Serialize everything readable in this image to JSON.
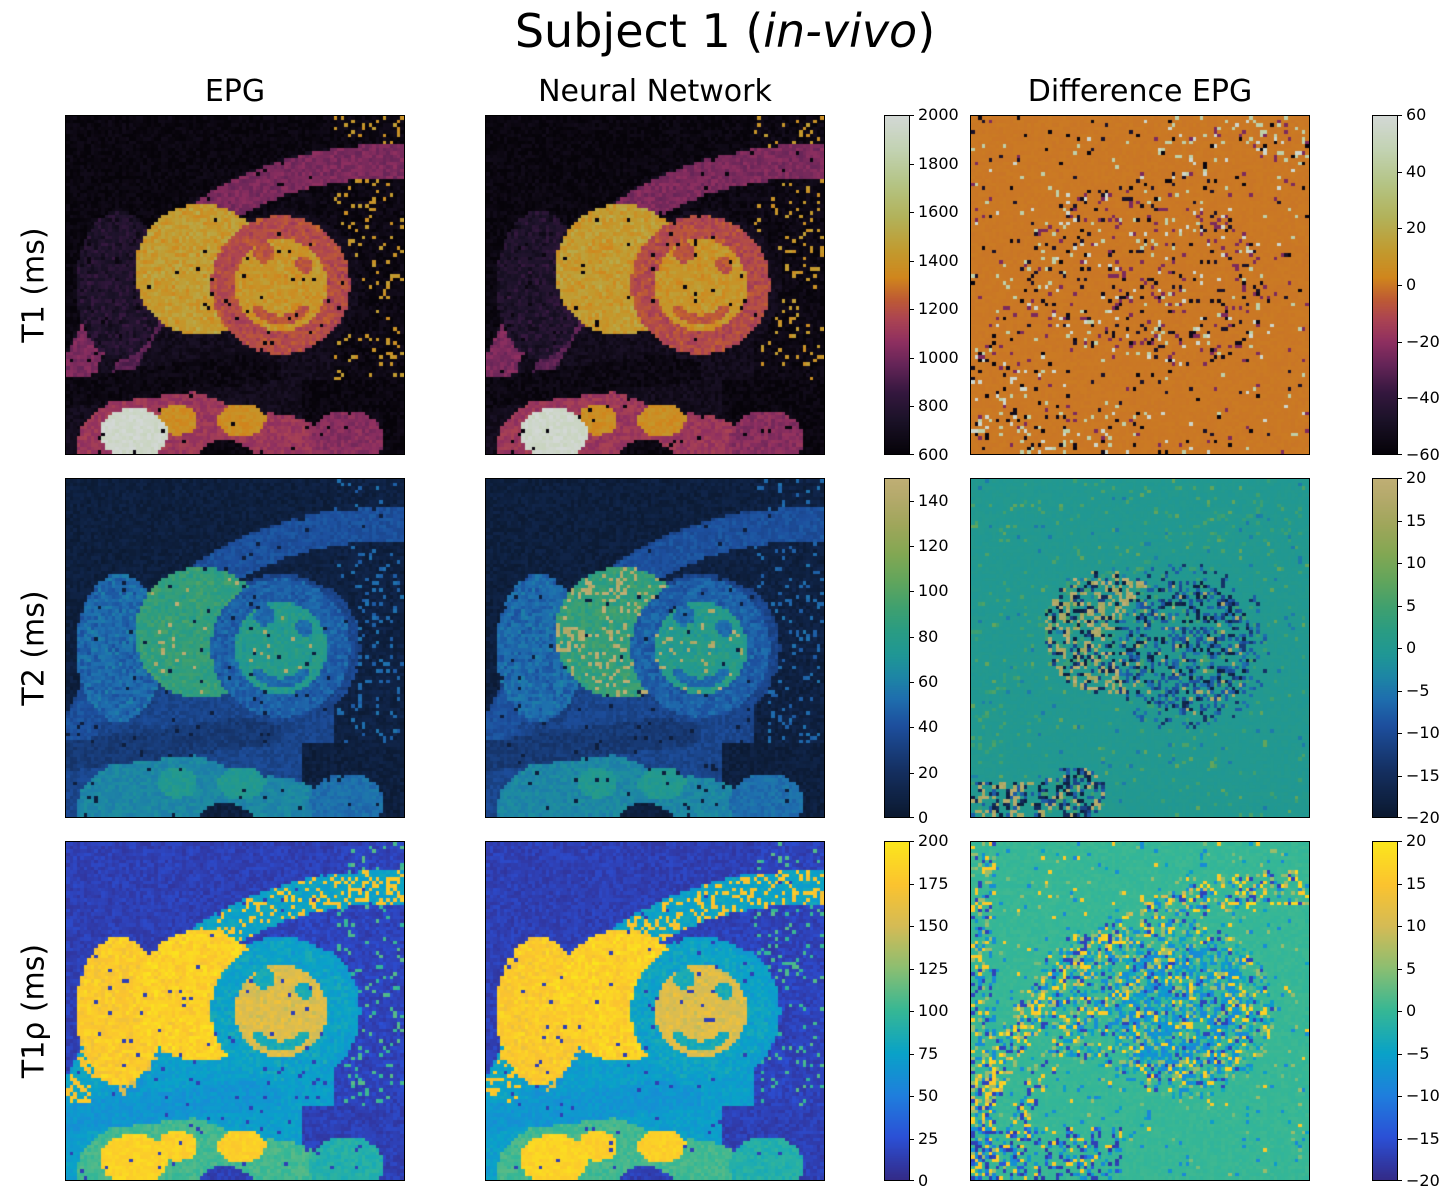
{
  "figure": {
    "title_prefix": "Subject 1 (",
    "title_italic": "in-vivo",
    "title_suffix": ")",
    "background_color": "#ffffff",
    "text_color": "#000000"
  },
  "columns": [
    "EPG",
    "Neural Network",
    "Difference EPG"
  ],
  "rows": [
    {
      "key": "t1",
      "label": "T1 (ms)",
      "colormap": "lipari",
      "map_colorbar": {
        "min": 600,
        "max": 2000,
        "tick_values": [
          600,
          800,
          1000,
          1200,
          1400,
          1600,
          1800,
          2000
        ],
        "tick_labels": [
          "600",
          "800",
          "1000",
          "1200",
          "1400",
          "1600",
          "1800",
          "2000"
        ]
      },
      "diff_colorbar": {
        "min": -60,
        "max": 60,
        "tick_values": [
          -60,
          -40,
          -20,
          0,
          20,
          40,
          60
        ],
        "tick_labels": [
          "−60",
          "−40",
          "−20",
          "0",
          "20",
          "40",
          "60"
        ]
      }
    },
    {
      "key": "t2",
      "label": "T2 (ms)",
      "colormap": "navia",
      "map_colorbar": {
        "min": 0,
        "max": 150,
        "tick_values": [
          0,
          20,
          40,
          60,
          80,
          100,
          120,
          140
        ],
        "tick_labels": [
          "0",
          "20",
          "40",
          "60",
          "80",
          "100",
          "120",
          "140"
        ]
      },
      "diff_colorbar": {
        "min": -20,
        "max": 20,
        "tick_values": [
          -20,
          -15,
          -10,
          -5,
          0,
          5,
          10,
          15,
          20
        ],
        "tick_labels": [
          "−20",
          "−15",
          "−10",
          "−5",
          "0",
          "5",
          "10",
          "15",
          "20"
        ]
      }
    },
    {
      "key": "t1rho",
      "label": "T1ρ (ms)",
      "colormap": "parula",
      "map_colorbar": {
        "min": 0,
        "max": 200,
        "tick_values": [
          0,
          25,
          50,
          75,
          100,
          125,
          150,
          175,
          200
        ],
        "tick_labels": [
          "0",
          "25",
          "50",
          "75",
          "100",
          "125",
          "150",
          "175",
          "200"
        ]
      },
      "diff_colorbar": {
        "min": -20,
        "max": 20,
        "tick_values": [
          -20,
          -15,
          -10,
          -5,
          0,
          5,
          10,
          15,
          20
        ],
        "tick_labels": [
          "−20",
          "−15",
          "−10",
          "−5",
          "0",
          "5",
          "10",
          "15",
          "20"
        ]
      }
    }
  ],
  "colormaps": {
    "lipari": {
      "stops": [
        [
          0,
          "#060309"
        ],
        [
          0.1,
          "#1b1228"
        ],
        [
          0.18,
          "#34173e"
        ],
        [
          0.26,
          "#632457"
        ],
        [
          0.33,
          "#8e2f60"
        ],
        [
          0.4,
          "#ac4452"
        ],
        [
          0.46,
          "#bf5c33"
        ],
        [
          0.52,
          "#d0861d"
        ],
        [
          0.6,
          "#c29a2e"
        ],
        [
          0.7,
          "#b2b25a"
        ],
        [
          0.8,
          "#b4c485"
        ],
        [
          0.9,
          "#c2d2b2"
        ],
        [
          1,
          "#d3d8d5"
        ]
      ]
    },
    "navia": {
      "stops": [
        [
          0,
          "#0b1930"
        ],
        [
          0.13,
          "#142e5e"
        ],
        [
          0.27,
          "#1d4f9e"
        ],
        [
          0.35,
          "#1e6fae"
        ],
        [
          0.42,
          "#1d87a4"
        ],
        [
          0.48,
          "#1f9795"
        ],
        [
          0.55,
          "#2a9c83"
        ],
        [
          0.62,
          "#3fa06f"
        ],
        [
          0.7,
          "#62a55c"
        ],
        [
          0.78,
          "#83a753"
        ],
        [
          0.86,
          "#9ea65a"
        ],
        [
          0.94,
          "#b3a96a"
        ],
        [
          1,
          "#bfae74"
        ]
      ]
    },
    "parula": {
      "stops": [
        [
          0,
          "#332b88"
        ],
        [
          0.125,
          "#2b50d6"
        ],
        [
          0.25,
          "#1f7fdd"
        ],
        [
          0.375,
          "#09a2c8"
        ],
        [
          0.5,
          "#36b795"
        ],
        [
          0.625,
          "#8abe72"
        ],
        [
          0.75,
          "#d4bb56"
        ],
        [
          0.875,
          "#fbc32f"
        ],
        [
          1,
          "#fbe61c"
        ]
      ]
    }
  },
  "chart_data": [
    {
      "type": "heatmap",
      "row_label": "T1 (ms)",
      "panels": [
        "EPG",
        "Neural Network",
        "Difference EPG"
      ],
      "content": "Short-axis in-vivo cardiac T1 parameter map (~96×96 pixel grid): dark background, magenta chest-wall arc, yellow right-ventricle crescent and left-ventricle blood pool inside an orange myocardial ring, bright light-gray spot at lower left",
      "map_value_range": [
        600,
        2000
      ],
      "map_colorbar_ticks": [
        600,
        800,
        1000,
        1200,
        1400,
        1600,
        1800,
        2000
      ],
      "diff_value_range": [
        -60,
        60
      ],
      "diff_colorbar_ticks": [
        -60,
        -40,
        -20,
        0,
        20,
        40,
        60
      ],
      "diff_content": "Difference map mostly 0 (mid-scale orange) with sparse black, navy, crimson, light-green and gray outlier pixels concentrated along tissue boundaries"
    },
    {
      "type": "heatmap",
      "row_label": "T2 (ms)",
      "panels": [
        "EPG",
        "Neural Network",
        "Difference EPG"
      ],
      "content": "Same anatomy as T1 row: dark navy background, blue tissue, green RV crescent (~90 ms) and teal-green LV pool (~75 ms); Neural Network panel shows extra bright tan speckle inside RV/LV",
      "map_value_range": [
        0,
        150
      ],
      "map_colorbar_ticks": [
        0,
        20,
        40,
        60,
        80,
        100,
        120,
        140
      ],
      "diff_value_range": [
        -20,
        20
      ],
      "diff_colorbar_ticks": [
        -20,
        -15,
        -10,
        -5,
        0,
        5,
        10,
        15,
        20
      ],
      "diff_content": "Difference map mostly 0 (teal) with strongly noisy tan/light pixels in the RV crescent and blue/dark pixels in the LV pool"
    },
    {
      "type": "heatmap",
      "row_label": "T1ρ (ms)",
      "panels": [
        "EPG",
        "Neural Network",
        "Difference EPG"
      ],
      "content": "Same anatomy: dark indigo background, blue tissue, bright yellow RV crescent and chest-wall streaks, orange LV pool (~160 ms) in a blue myocardial ring, yellow blobs at bottom left",
      "map_value_range": [
        0,
        200
      ],
      "map_colorbar_ticks": [
        0,
        25,
        50,
        75,
        100,
        125,
        150,
        175,
        200
      ],
      "diff_value_range": [
        -20,
        20
      ],
      "diff_colorbar_ticks": [
        -20,
        -15,
        -10,
        -5,
        0,
        5,
        10,
        15,
        20
      ],
      "diff_content": "Difference map mostly 0 (green-teal) with blue negative noise across the heart, yellow outliers along the chest-wall arc and dark navy clusters at bottom left"
    }
  ]
}
